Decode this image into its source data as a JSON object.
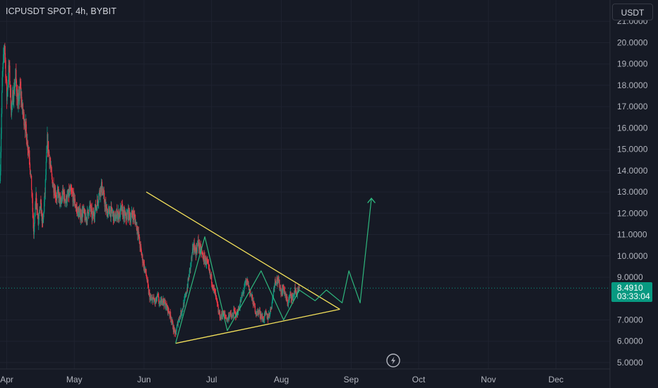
{
  "header": {
    "title": "ICPUSDT SPOT, 4h, BYBIT",
    "currency": "USDT"
  },
  "price_badge": {
    "price": "8.4910",
    "countdown": "03:33:04",
    "color": "#089981"
  },
  "colors": {
    "background": "#161a25",
    "up_candle": "#089981",
    "down_candle": "#f23645",
    "triangle_line": "#f5e25b",
    "projection_line": "#2eb67d",
    "current_price_line": "#089981"
  },
  "icons": {
    "replay": "lightning-bolt-circle-icon",
    "arrow": "arrow-up-icon"
  },
  "chart_data": {
    "type": "candlestick",
    "interval": "4h",
    "xlabel": "",
    "ylabel": "",
    "ylim": [
      4.7,
      22.0
    ],
    "y_ticks": [
      "21.0000",
      "20.0000",
      "19.0000",
      "18.0000",
      "17.0000",
      "16.0000",
      "15.0000",
      "14.0000",
      "13.0000",
      "12.0000",
      "11.0000",
      "10.0000",
      "9.0000",
      "7.0000",
      "6.0000",
      "5.0000"
    ],
    "x_ticks": [
      "Apr",
      "May",
      "Jun",
      "Jul",
      "Aug",
      "Sep",
      "Oct",
      "Nov",
      "Dec"
    ],
    "x_tick_days": [
      0,
      30,
      61,
      91,
      122,
      153,
      183,
      214,
      244
    ],
    "xlim": [
      -3,
      268
    ],
    "current_price": 8.491,
    "price_path": [
      [
        -3,
        13.5
      ],
      [
        -2,
        18.2
      ],
      [
        -1,
        20.0
      ],
      [
        0,
        17.4
      ],
      [
        1,
        18.9
      ],
      [
        2,
        16.9
      ],
      [
        3,
        17.6
      ],
      [
        4,
        18.4
      ],
      [
        5,
        17.0
      ],
      [
        6,
        17.9
      ],
      [
        7,
        16.8
      ],
      [
        8,
        16.3
      ],
      [
        9,
        15.4
      ],
      [
        10,
        14.8
      ],
      [
        11,
        13.2
      ],
      [
        12,
        11.0
      ],
      [
        13,
        12.8
      ],
      [
        14,
        11.5
      ],
      [
        15,
        12.4
      ],
      [
        16,
        11.4
      ],
      [
        17,
        13.0
      ],
      [
        18,
        15.4
      ],
      [
        19,
        14.6
      ],
      [
        20,
        13.6
      ],
      [
        21,
        13.2
      ],
      [
        22,
        12.8
      ],
      [
        23,
        12.9
      ],
      [
        24,
        12.4
      ],
      [
        25,
        13.0
      ],
      [
        26,
        12.6
      ],
      [
        27,
        12.7
      ],
      [
        28,
        13.0
      ],
      [
        29,
        12.9
      ],
      [
        30,
        12.6
      ],
      [
        31,
        12.2
      ],
      [
        32,
        12.0
      ],
      [
        33,
        11.9
      ],
      [
        34,
        12.1
      ],
      [
        35,
        11.7
      ],
      [
        36,
        12.0
      ],
      [
        37,
        12.3
      ],
      [
        38,
        11.8
      ],
      [
        39,
        12.1
      ],
      [
        40,
        12.4
      ],
      [
        41,
        12.9
      ],
      [
        42,
        13.3
      ],
      [
        43,
        12.8
      ],
      [
        44,
        12.2
      ],
      [
        45,
        12.0
      ],
      [
        46,
        12.1
      ],
      [
        47,
        12.0
      ],
      [
        48,
        11.7
      ],
      [
        49,
        12.0
      ],
      [
        50,
        11.9
      ],
      [
        51,
        12.2
      ],
      [
        52,
        11.9
      ],
      [
        53,
        11.8
      ],
      [
        54,
        12.0
      ],
      [
        55,
        11.8
      ],
      [
        56,
        12.0
      ],
      [
        57,
        11.7
      ],
      [
        58,
        11.3
      ],
      [
        59,
        10.6
      ],
      [
        60,
        10.0
      ],
      [
        61,
        9.5
      ],
      [
        62,
        9.1
      ],
      [
        63,
        8.3
      ],
      [
        64,
        7.9
      ],
      [
        65,
        8.0
      ],
      [
        66,
        7.8
      ],
      [
        67,
        8.1
      ],
      [
        68,
        7.7
      ],
      [
        69,
        8.0
      ],
      [
        70,
        7.8
      ],
      [
        71,
        7.6
      ],
      [
        72,
        7.4
      ],
      [
        73,
        7.1
      ],
      [
        74,
        6.6
      ],
      [
        75,
        6.3
      ],
      [
        76,
        6.9
      ],
      [
        77,
        7.2
      ],
      [
        78,
        7.5
      ],
      [
        79,
        7.9
      ],
      [
        80,
        8.4
      ],
      [
        81,
        9.1
      ],
      [
        82,
        9.8
      ],
      [
        83,
        10.5
      ],
      [
        84,
        10.2
      ],
      [
        85,
        10.6
      ],
      [
        86,
        10.3
      ],
      [
        87,
        10.0
      ],
      [
        88,
        9.8
      ],
      [
        89,
        9.7
      ],
      [
        90,
        9.2
      ],
      [
        91,
        8.9
      ],
      [
        92,
        8.4
      ],
      [
        93,
        8.0
      ],
      [
        94,
        7.4
      ],
      [
        95,
        7.1
      ],
      [
        96,
        7.3
      ],
      [
        97,
        7.2
      ],
      [
        98,
        7.0
      ],
      [
        99,
        7.3
      ],
      [
        100,
        7.1
      ],
      [
        101,
        7.4
      ],
      [
        102,
        7.2
      ],
      [
        103,
        7.5
      ],
      [
        104,
        7.9
      ],
      [
        105,
        8.3
      ],
      [
        106,
        8.7
      ],
      [
        107,
        8.8
      ],
      [
        108,
        8.3
      ],
      [
        109,
        8.0
      ],
      [
        110,
        7.6
      ],
      [
        111,
        7.3
      ],
      [
        112,
        7.4
      ],
      [
        113,
        7.2
      ],
      [
        114,
        7.0
      ],
      [
        115,
        7.3
      ],
      [
        116,
        7.1
      ],
      [
        117,
        7.4
      ],
      [
        118,
        7.9
      ],
      [
        119,
        8.8
      ],
      [
        120,
        8.9
      ],
      [
        121,
        8.7
      ],
      [
        122,
        8.3
      ],
      [
        123,
        8.5
      ],
      [
        124,
        8.0
      ],
      [
        125,
        7.8
      ],
      [
        126,
        8.2
      ],
      [
        127,
        8.0
      ],
      [
        128,
        8.4
      ],
      [
        129,
        8.2
      ],
      [
        130,
        8.5
      ]
    ],
    "series": [
      {
        "name": "",
        "type": "line",
        "points": [
          [
            62,
            13.0
          ],
          [
            148,
            7.5
          ]
        ]
      },
      {
        "name": "",
        "type": "line",
        "points": [
          [
            75,
            5.9
          ],
          [
            148,
            7.5
          ]
        ]
      },
      {
        "name": "",
        "type": "line",
        "points": [
          [
            75,
            5.9
          ],
          [
            88,
            10.9
          ],
          [
            98,
            6.5
          ],
          [
            113,
            9.3
          ],
          [
            123,
            7.0
          ],
          [
            130,
            8.4
          ],
          [
            137,
            7.9
          ],
          [
            142,
            8.4
          ],
          [
            149,
            7.8
          ],
          [
            152,
            9.3
          ],
          [
            157,
            7.8
          ],
          [
            162,
            12.7
          ]
        ]
      }
    ]
  }
}
